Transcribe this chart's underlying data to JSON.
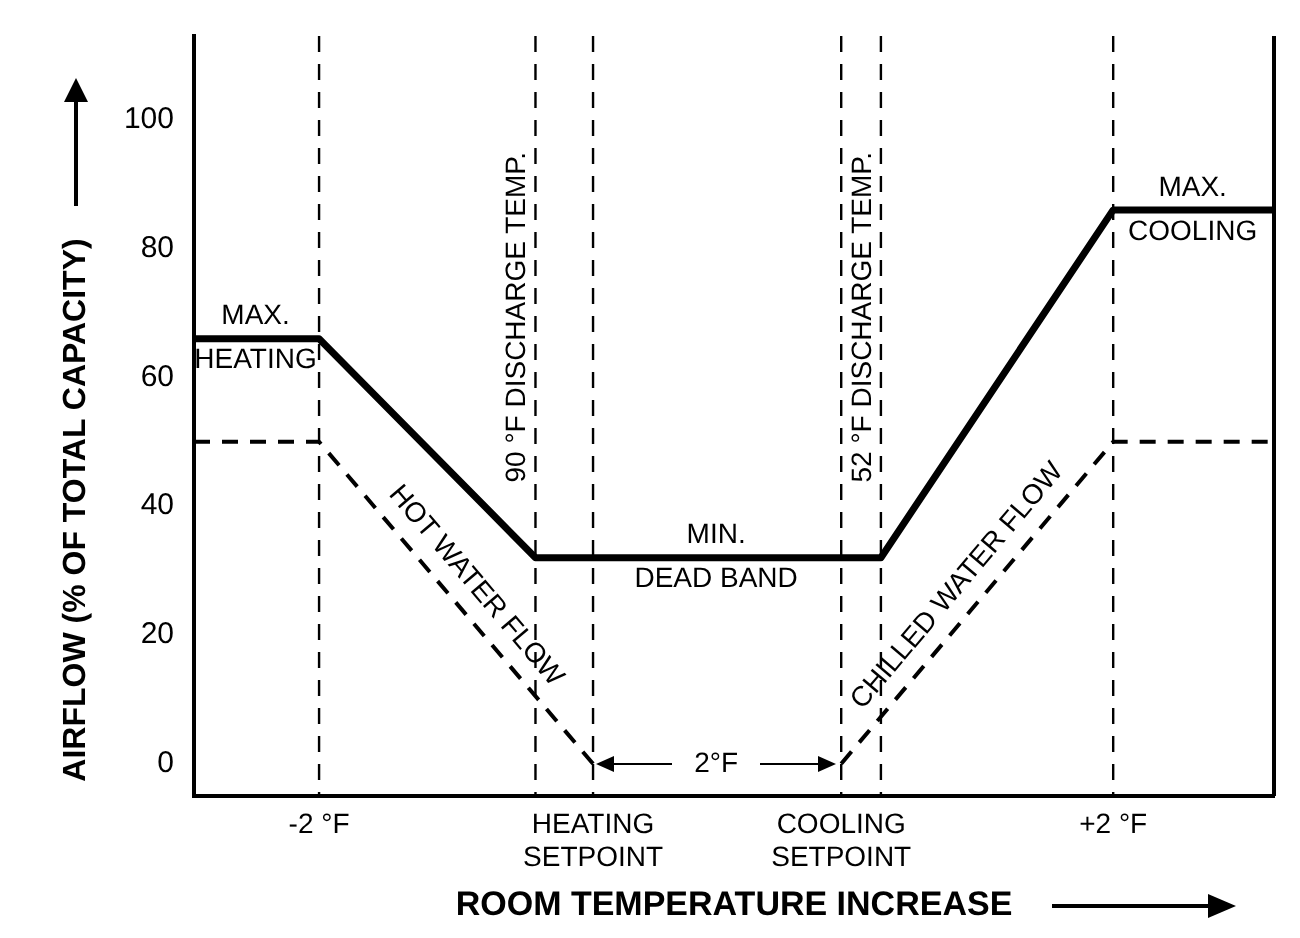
{
  "chart_data": {
    "type": "line",
    "xlabel": "ROOM TEMPERATURE INCREASE",
    "ylabel": "AIRFLOW (% OF TOTAL CAPACITY)",
    "xlim": [
      -2.63,
      2.81
    ],
    "ylim": [
      -5,
      113
    ],
    "xticks": [
      {
        "value": -2,
        "label": "-2 °F"
      },
      {
        "value": -0.62,
        "label": "HEATING\nSETPOINT"
      },
      {
        "value": 0.63,
        "label": "COOLING\nSETPOINT"
      },
      {
        "value": 2,
        "label": "+2 °F"
      }
    ],
    "yticks": [
      0,
      20,
      40,
      60,
      80,
      100
    ],
    "series": [
      {
        "color": "#000000",
        "line_style": "solid",
        "x": [
          -2.63,
          -2,
          -0.91,
          0.83,
          2,
          2.81
        ],
        "values": [
          66,
          66,
          32,
          32,
          86,
          86
        ]
      },
      {
        "name": "HOT WATER FLOW",
        "color": "#000000",
        "line_style": "dashed",
        "x": [
          -2.63,
          -2,
          -0.62
        ],
        "values": [
          50,
          50,
          0
        ]
      },
      {
        "name": "CHILLED WATER FLOW",
        "color": "#000000",
        "line_style": "dashed",
        "x": [
          0.63,
          2,
          2.81
        ],
        "values": [
          0,
          50,
          50
        ]
      }
    ],
    "ref_lines": [
      {
        "axis": "x",
        "value": -2,
        "line_style": "dashed",
        "color": "#000000"
      },
      {
        "axis": "x",
        "value": -0.91,
        "label": "90 °F DISCHARGE TEMP.",
        "line_style": "dashed",
        "color": "#000000"
      },
      {
        "axis": "x",
        "value": -0.62,
        "line_style": "dashed",
        "color": "#000000"
      },
      {
        "axis": "x",
        "value": 0.63,
        "line_style": "dashed",
        "color": "#000000"
      },
      {
        "axis": "x",
        "value": 0.83,
        "label": "52 °F DISCHARGE TEMP.",
        "line_style": "dashed",
        "color": "#000000"
      },
      {
        "axis": "x",
        "value": 2,
        "line_style": "dashed",
        "color": "#000000"
      }
    ],
    "annotations": [
      {
        "text": "MAX.\nHEATING",
        "x": -2.32,
        "y": 66
      },
      {
        "text": "MIN.\nDEAD BAND",
        "x": 0,
        "y": 32
      },
      {
        "text": "MAX.\nCOOLING",
        "x": 2.4,
        "y": 86
      },
      {
        "text": "2°F",
        "x": 0,
        "y": 0
      }
    ],
    "grid": false,
    "legend": false,
    "marker": "none"
  }
}
